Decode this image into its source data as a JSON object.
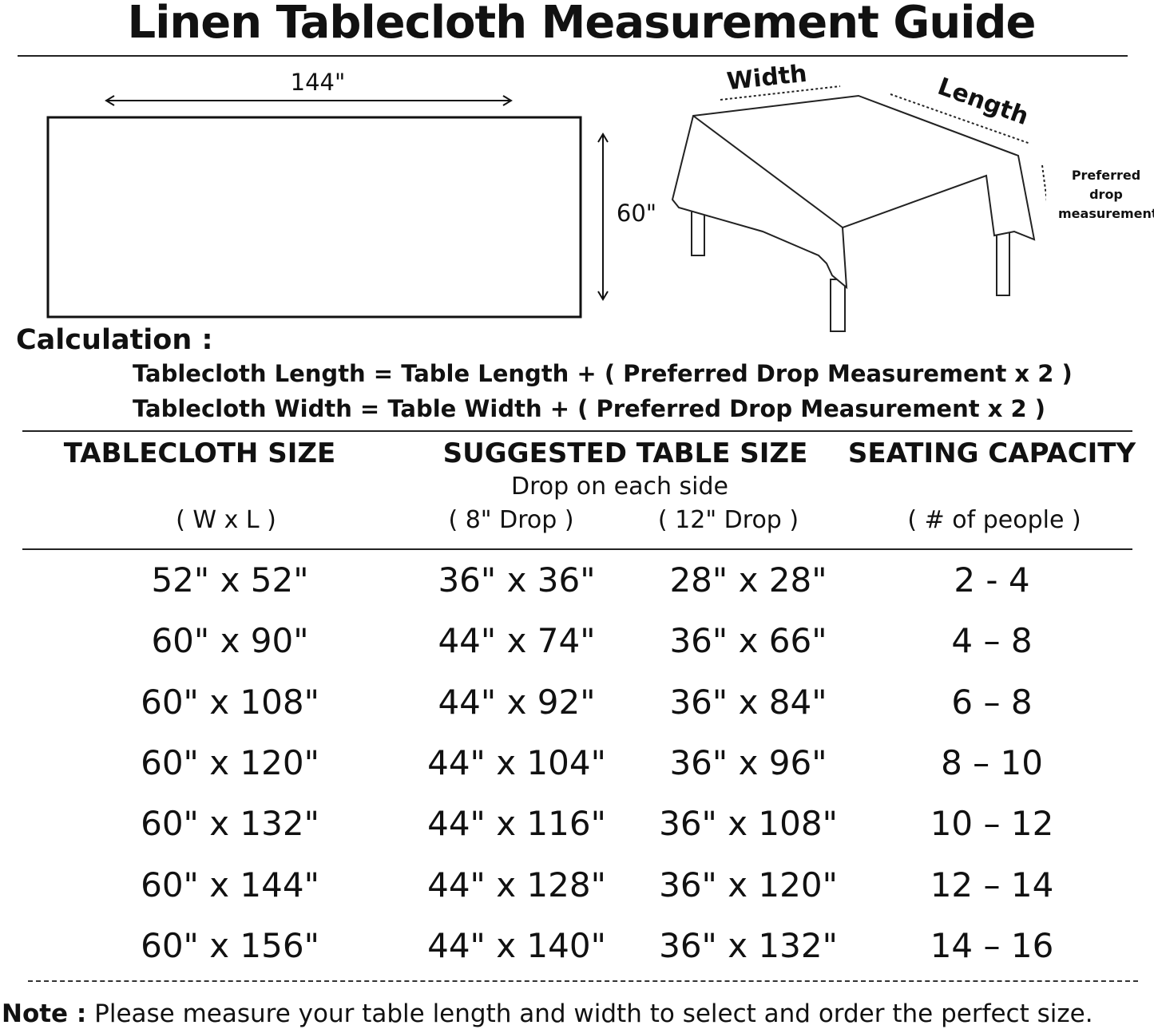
{
  "title": "Linen Tablecloth Measurement Guide",
  "diagram": {
    "length_label": "144\"",
    "width_label": "60\"",
    "table_width_label": "Width",
    "table_length_label": "Length",
    "drop_label_lines": [
      "Preferred",
      "drop",
      "measurement"
    ]
  },
  "calculation": {
    "label": "Calculation :",
    "formulas": [
      "Tablecloth Length = Table Length + ( Preferred Drop Measurement x 2 )",
      "Tablecloth Width = Table Width + ( Preferred Drop Measurement x 2 )"
    ]
  },
  "table": {
    "headers": {
      "tablecloth_size": "TABLECLOTH SIZE",
      "suggested_table_size": "SUGGESTED TABLE SIZE",
      "seating_capacity": "SEATING CAPACITY",
      "drop_subtitle": "Drop on each side",
      "wxl": "( W x L )",
      "drop8": "( 8\" Drop )",
      "drop12": "( 12\" Drop )",
      "people": "( # of people )"
    },
    "rows": [
      [
        "52\" x 52\"",
        "36\" x 36\"",
        "28\" x 28\"",
        "2 - 4"
      ],
      [
        "60\" x 90\"",
        "44\" x 74\"",
        "36\" x 66\"",
        "4 – 8"
      ],
      [
        "60\" x 108\"",
        "44\" x 92\"",
        "36\" x 84\"",
        "6 – 8"
      ],
      [
        "60\" x 120\"",
        "44\" x 104\"",
        "36\" x 96\"",
        "8 – 10"
      ],
      [
        "60\" x 132\"",
        "44\" x 116\"",
        "36\" x 108\"",
        "10 – 12"
      ],
      [
        "60\" x 144\"",
        "44\" x 128\"",
        "36\" x 120\"",
        "12 – 14"
      ],
      [
        "60\" x 156\"",
        "44\" x 140\"",
        "36\" x 132\"",
        "14 – 16"
      ]
    ]
  },
  "note": {
    "label": "Note :",
    "text": " Please measure your table length and width to select and order the perfect size."
  }
}
